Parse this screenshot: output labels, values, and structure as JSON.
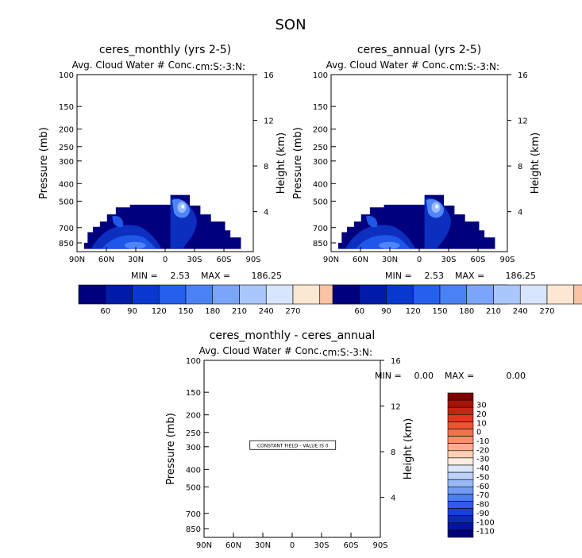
{
  "figure_title": "SON",
  "colors": {
    "dark_blue": "#00007f",
    "blue": "#0c2fbf",
    "mid_blue": "#1f57e8",
    "light_blue": "#4f86f7",
    "pale_blue": "#9bbcf9",
    "white_blue": "#e6f0ff"
  },
  "chart_data": [
    {
      "id": "panel-monthly",
      "type": "heatmap",
      "title": "ceres_monthly (yrs 2-5)",
      "subtitle": "Avg. Cloud Water # Conc.",
      "region_label": "cm:S:-3:N:",
      "ylabel": "Pressure (mb)",
      "y2label": "Height (km)",
      "xticks": [
        "90N",
        "60N",
        "30N",
        "0",
        "30S",
        "60S",
        "90S"
      ],
      "yticks": [
        "100",
        "150",
        "200",
        "250",
        "300",
        "400",
        "500",
        "700",
        "850"
      ],
      "y2ticks": [
        "16",
        "12",
        "8",
        "4"
      ],
      "stats": {
        "min_label": "MIN =",
        "min": "2.53",
        "max_label": "MAX =",
        "max": "186.25"
      },
      "colorbar": {
        "orientation": "horizontal",
        "labels": [
          "60",
          "90",
          "120",
          "150",
          "180",
          "210",
          "240",
          "270"
        ],
        "colors": [
          "#00007f",
          "#001ba8",
          "#0838d0",
          "#2460ec",
          "#4a82f6",
          "#7aa5f9",
          "#a9c7fb",
          "#d8e6fd",
          "#fde6d2",
          "#fbc3a5",
          "#f79c7a",
          "#f0724f",
          "#e34a2c",
          "#c92a14",
          "#a0120a",
          "#6b0000"
        ]
      }
    },
    {
      "id": "panel-annual",
      "type": "heatmap",
      "title": "ceres_annual (yrs 2-5)",
      "subtitle": "Avg. Cloud Water # Conc.",
      "region_label": "cm:S:-3:N:",
      "ylabel": "Pressure (mb)",
      "y2label": "Height (km)",
      "xticks": [
        "90N",
        "60N",
        "30N",
        "0",
        "30S",
        "60S",
        "90S"
      ],
      "yticks": [
        "100",
        "150",
        "200",
        "250",
        "300",
        "400",
        "500",
        "700",
        "850"
      ],
      "y2ticks": [
        "16",
        "12",
        "8",
        "4"
      ],
      "stats": {
        "min_label": "MIN =",
        "min": "2.53",
        "max_label": "MAX =",
        "max": "186.25"
      },
      "colorbar": {
        "orientation": "horizontal",
        "labels": [
          "60",
          "90",
          "120",
          "150",
          "180",
          "210",
          "240",
          "270"
        ],
        "colors": [
          "#00007f",
          "#001ba8",
          "#0838d0",
          "#2460ec",
          "#4a82f6",
          "#7aa5f9",
          "#a9c7fb",
          "#d8e6fd",
          "#fde6d2",
          "#fbc3a5",
          "#f79c7a",
          "#f0724f",
          "#e34a2c",
          "#c92a14",
          "#a0120a",
          "#6b0000"
        ]
      }
    },
    {
      "id": "panel-diff",
      "type": "heatmap",
      "title": "ceres_monthly - ceres_annual",
      "subtitle": "Avg. Cloud Water # Conc.",
      "region_label": "cm:S:-3:N:",
      "ylabel": "Pressure (mb)",
      "y2label": "Height (km)",
      "xticks": [
        "90N",
        "60N",
        "30N",
        "0",
        "30S",
        "60S",
        "90S"
      ],
      "yticks": [
        "100",
        "150",
        "200",
        "250",
        "300",
        "400",
        "500",
        "700",
        "850"
      ],
      "y2ticks": [
        "16",
        "12",
        "8",
        "4"
      ],
      "note": "CONSTANT FIELD - VALUE IS 0",
      "stats": {
        "min_label": "MIN =",
        "min": "0.00",
        "max_label": "MAX =",
        "max": "0.00"
      },
      "colorbar": {
        "orientation": "vertical",
        "labels": [
          "30",
          "20",
          "10",
          "0",
          "-10",
          "-20",
          "-30",
          "-40",
          "-50",
          "-60",
          "-70",
          "-80",
          "-90",
          "-100",
          "-110"
        ],
        "colors": [
          "#800000",
          "#a51206",
          "#c42410",
          "#dc3a1d",
          "#ec5530",
          "#f5714a",
          "#f99069",
          "#fbb08f",
          "#fdd0b5",
          "#fdeedf",
          "#dbe7fb",
          "#bcd2f8",
          "#98b9f5",
          "#729df2",
          "#4c7fee",
          "#2c5fe6",
          "#1442d6",
          "#0a2ab8",
          "#041694",
          "#00007a"
        ]
      }
    }
  ]
}
